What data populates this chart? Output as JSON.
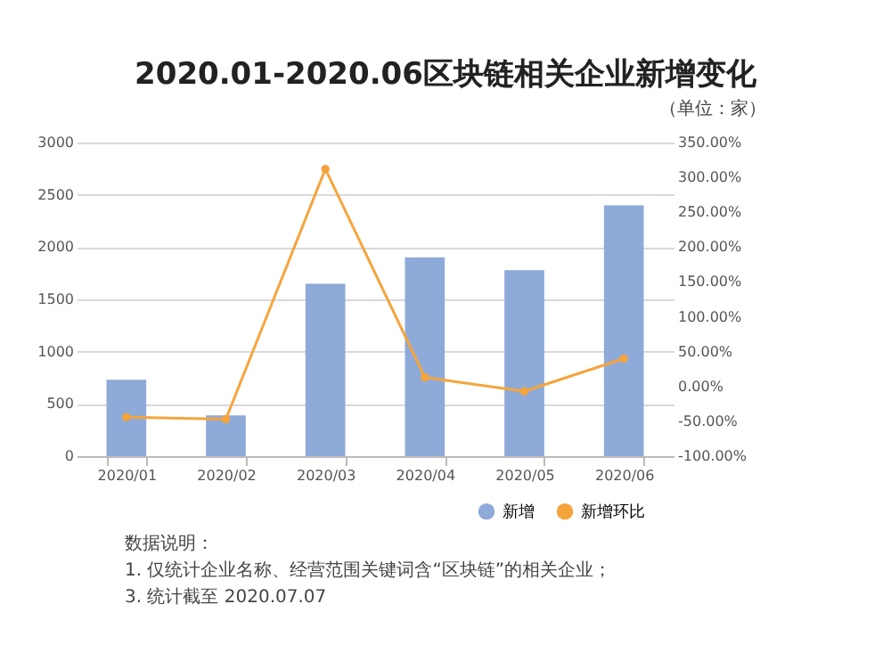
{
  "chart_data": {
    "type": "bar",
    "title": "2020.01-2020.06区块链相关企业新增变化",
    "categories": [
      "2020/01",
      "2020/02",
      "2020/03",
      "2020/04",
      "2020/05",
      "2020/06"
    ],
    "series": [
      {
        "name": "新增",
        "color": "#8eaad8",
        "values": [
          730,
          390,
          1650,
          1900,
          1780,
          2400
        ]
      },
      {
        "name": "新增环比",
        "type": "line",
        "axis": "y2",
        "color": "#f5a43c",
        "values": [
          -44,
          -47,
          312,
          13,
          -7,
          40
        ]
      }
    ],
    "ylim": [
      0,
      3000
    ],
    "yticks": [
      0,
      500,
      1000,
      1500,
      2000,
      2500,
      3000
    ],
    "y2lim": [
      -100,
      350
    ],
    "y2ticks": [
      {
        "value": -100,
        "label": "-100.00%"
      },
      {
        "value": -50,
        "label": "-50.00%"
      },
      {
        "value": 0,
        "label": "0.00%"
      },
      {
        "value": 50,
        "label": "50.00%"
      },
      {
        "value": 100,
        "label": "100.00%"
      },
      {
        "value": 150,
        "label": "150.00%"
      },
      {
        "value": 200,
        "label": "200.00%"
      },
      {
        "value": 250,
        "label": "250.00%"
      },
      {
        "value": 300,
        "label": "300.00%"
      },
      {
        "value": 350,
        "label": "350.00%"
      }
    ],
    "grid": "y",
    "legend": "bottom right",
    "marker": "circle",
    "line_style": "solid",
    "annotations": [
      "（单位：家）",
      "数据说明：",
      "1. 仅统计企业名称、经营范围关键词含“区块链”的相关企业；",
      "3. 统计截至 2020.07.07"
    ]
  }
}
